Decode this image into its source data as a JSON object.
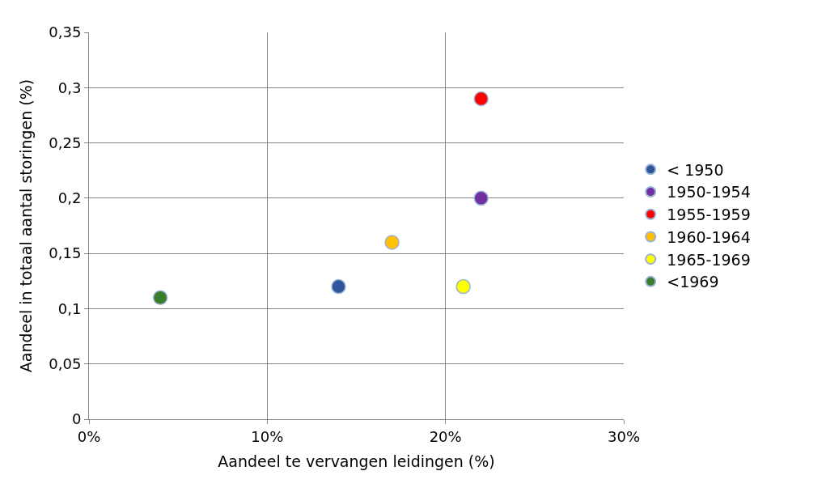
{
  "chart_data": {
    "type": "scatter",
    "xlabel": "Aandeel te vervangen leidingen (%)",
    "ylabel": "Aandeel in totaal aantal storingen (%)",
    "xlim": [
      0,
      30
    ],
    "xticks": [
      {
        "value": 0,
        "label": "0%"
      },
      {
        "value": 10,
        "label": "10%"
      },
      {
        "value": 20,
        "label": "20%"
      },
      {
        "value": 30,
        "label": "30%"
      }
    ],
    "ylim": [
      0,
      0.35
    ],
    "yticks": [
      0,
      {
        "value": 0.05,
        "label": "0,05"
      },
      {
        "value": 0.1,
        "label": "0,1"
      },
      {
        "value": 0.15,
        "label": "0,15"
      },
      {
        "value": 0.2,
        "label": "0,2"
      },
      {
        "value": 0.25,
        "label": "0,25"
      },
      {
        "value": 0.3,
        "label": "0,3"
      },
      {
        "value": 0.35,
        "label": "0,35"
      }
    ],
    "grid": true,
    "legend": "right",
    "marker": "circle",
    "series": [
      {
        "name": "< 1950",
        "color": "#2f559a",
        "x": [
          14
        ],
        "values": [
          0.12
        ]
      },
      {
        "name": "1950-1954",
        "color": "#7030a0",
        "x": [
          22
        ],
        "values": [
          0.2
        ]
      },
      {
        "name": "1955-1959",
        "color": "#ff0000",
        "x": [
          22
        ],
        "values": [
          0.29
        ]
      },
      {
        "name": "1960-1964",
        "color": "#ffc000",
        "x": [
          17
        ],
        "values": [
          0.16
        ]
      },
      {
        "name": "1965-1969",
        "color": "#ffff00",
        "x": [
          21
        ],
        "values": [
          0.12
        ]
      },
      {
        "name": "<1969",
        "color": "#3a7d2c",
        "x": [
          4
        ],
        "values": [
          0.11
        ]
      }
    ]
  }
}
